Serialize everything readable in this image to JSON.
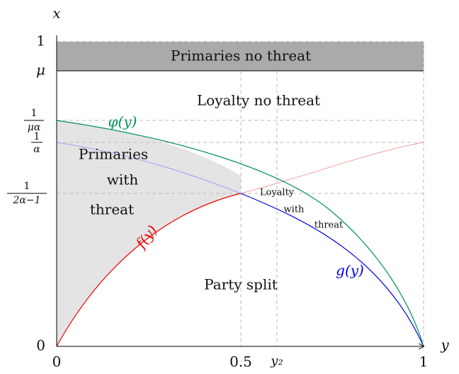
{
  "axes": {
    "x_label": "x",
    "y_label": "y"
  },
  "x_ticks": [
    "0",
    "0.5",
    "y₂",
    "1"
  ],
  "y_ticks": {
    "zero": "0",
    "one": "1",
    "mu": "μ",
    "inv_mu_alpha": {
      "num": "1",
      "den": "μα"
    },
    "inv_alpha": {
      "num": "1",
      "den": "α"
    },
    "inv_2alpha": {
      "num": "1",
      "den": "2α−1"
    }
  },
  "regions": {
    "primaries_no_threat": "Primaries no threat",
    "loyalty_no_threat": "Loyalty no threat",
    "primaries_with_threat": [
      "Primaries",
      "with",
      "threat"
    ],
    "loyalty_with_threat": [
      "Loyalty",
      "with",
      "threat"
    ],
    "party_split": "Party split"
  },
  "curves": {
    "phi": "φ(y)",
    "f": "f(y)",
    "g": "g(y)"
  }
}
